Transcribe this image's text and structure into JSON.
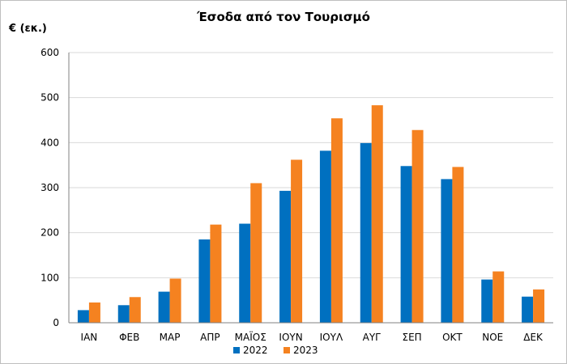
{
  "chart_data": {
    "type": "bar",
    "title": "Έσοδα από τον Τουρισμό",
    "ylabel": "€ (εκ.)",
    "xlabel": "",
    "ylim": [
      0,
      600
    ],
    "yticks": [
      "0",
      "100",
      "200",
      "300",
      "400",
      "500",
      "600"
    ],
    "grid": true,
    "legend": "bottom",
    "categories": [
      "ΙΑΝ",
      "ΦΕΒ",
      "ΜΑΡ",
      "ΑΠΡ",
      "ΜΑΪΟΣ",
      "ΙΟΥΝ",
      "ΙΟΥΛ",
      "ΑΥΓ",
      "ΣΕΠ",
      "ΟΚΤ",
      "ΝΟΕ",
      "ΔΕΚ"
    ],
    "series": [
      {
        "name": "2022",
        "color": "#0070C0",
        "values": [
          28,
          39,
          69,
          185,
          220,
          293,
          382,
          399,
          348,
          319,
          96,
          58
        ]
      },
      {
        "name": "2023",
        "color": "#F58220",
        "values": [
          45,
          57,
          98,
          218,
          310,
          362,
          454,
          483,
          428,
          346,
          114,
          74
        ]
      }
    ]
  }
}
